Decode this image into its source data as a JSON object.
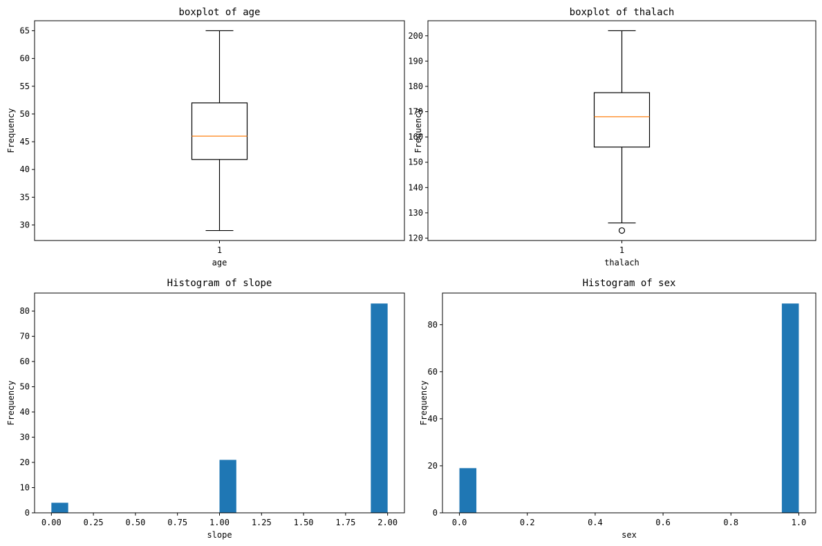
{
  "chart_data": [
    {
      "type": "box",
      "title": "boxplot of age",
      "xlabel": "age",
      "ylabel": "Frequency",
      "categories": [
        "1"
      ],
      "ylim": [
        27.2,
        66.8
      ],
      "yticks": [
        30,
        35,
        40,
        45,
        50,
        55,
        60,
        65
      ],
      "box": {
        "whisker_low": 29,
        "q1": 41.8,
        "median": 46,
        "q3": 52,
        "whisker_high": 65,
        "outliers": []
      },
      "colors": {
        "box": "#000000",
        "median": "#ff7f0e"
      }
    },
    {
      "type": "box",
      "title": "boxplot of thalach",
      "xlabel": "thalach",
      "ylabel": "Frequency",
      "categories": [
        "1"
      ],
      "ylim": [
        119.05,
        205.95
      ],
      "yticks": [
        120,
        130,
        140,
        150,
        160,
        170,
        180,
        190,
        200
      ],
      "box": {
        "whisker_low": 126,
        "q1": 156,
        "median": 168,
        "q3": 177.5,
        "whisker_high": 202,
        "outliers": [
          123
        ]
      },
      "colors": {
        "box": "#000000",
        "median": "#ff7f0e"
      }
    },
    {
      "type": "histogram",
      "title": "Histogram of slope",
      "xlabel": "slope",
      "ylabel": "Frequency",
      "xlim": [
        -0.1,
        2.1
      ],
      "ylim": [
        0,
        87.15
      ],
      "xticks": [
        0.0,
        0.25,
        0.5,
        0.75,
        1.0,
        1.25,
        1.5,
        1.75,
        2.0
      ],
      "xtick_labels": [
        "0.00",
        "0.25",
        "0.50",
        "0.75",
        "1.00",
        "1.25",
        "1.50",
        "1.75",
        "2.00"
      ],
      "yticks": [
        0,
        10,
        20,
        30,
        40,
        50,
        60,
        70,
        80
      ],
      "bars": [
        {
          "x0": 0.0,
          "x1": 0.1,
          "value": 4
        },
        {
          "x0": 1.0,
          "x1": 1.1,
          "value": 21
        },
        {
          "x0": 1.9,
          "x1": 2.0,
          "value": 83
        }
      ],
      "colors": {
        "bar": "#1f77b4"
      }
    },
    {
      "type": "histogram",
      "title": "Histogram of sex",
      "xlabel": "sex",
      "ylabel": "Frequency",
      "xlim": [
        -0.05,
        1.05
      ],
      "ylim": [
        0,
        93.45
      ],
      "xticks": [
        0.0,
        0.2,
        0.4,
        0.6,
        0.8,
        1.0
      ],
      "xtick_labels": [
        "0.0",
        "0.2",
        "0.4",
        "0.6",
        "0.8",
        "1.0"
      ],
      "yticks": [
        0,
        20,
        40,
        60,
        80
      ],
      "bars": [
        {
          "x0": 0.0,
          "x1": 0.05,
          "value": 19
        },
        {
          "x0": 0.95,
          "x1": 1.0,
          "value": 89
        }
      ],
      "colors": {
        "bar": "#1f77b4"
      }
    }
  ]
}
